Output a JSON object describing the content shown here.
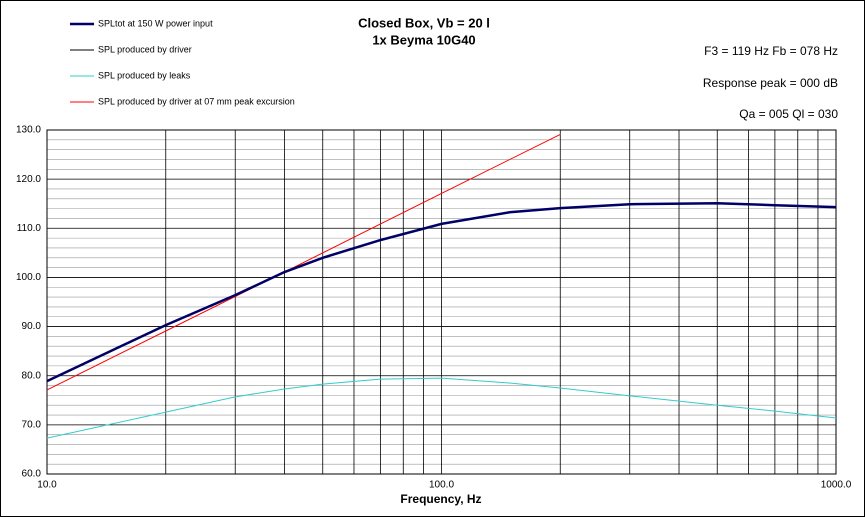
{
  "chart_data": {
    "type": "line",
    "title": "Closed Box, Vb = 20 l",
    "subtitle": "1x Beyma 10G40",
    "annotations": [
      "F3 = 119 Hz  Fb = 078 Hz",
      "Response peak = 000 dB",
      "Qa = 005  Ql = 030"
    ],
    "x_label": "Frequency, Hz",
    "log_x": true,
    "grid": true,
    "legend": "top-left",
    "xlim": [
      10,
      1000
    ],
    "ylim": [
      60,
      130
    ],
    "xticks": [
      {
        "value": 10,
        "label": "10.0"
      },
      {
        "value": 100,
        "label": "100.0"
      },
      {
        "value": 1000,
        "label": "1000.0"
      }
    ],
    "xminor": [
      20,
      30,
      40,
      50,
      60,
      70,
      80,
      90,
      200,
      300,
      400,
      500,
      600,
      700,
      800,
      900
    ],
    "yticks": [
      {
        "value": 60,
        "label": "60.0"
      },
      {
        "value": 70,
        "label": "70.0"
      },
      {
        "value": 80,
        "label": "80.0"
      },
      {
        "value": 90,
        "label": "90.0"
      },
      {
        "value": 100,
        "label": "100.0"
      },
      {
        "value": 110,
        "label": "110.0"
      },
      {
        "value": 120,
        "label": "120.0"
      },
      {
        "value": 130,
        "label": "130.0"
      }
    ],
    "yminor": [
      62,
      64,
      66,
      68,
      72,
      74,
      76,
      78,
      82,
      84,
      86,
      88,
      92,
      94,
      96,
      98,
      102,
      104,
      106,
      108,
      112,
      114,
      116,
      118,
      122,
      124,
      126,
      128
    ],
    "series": [
      {
        "name": "SPLtot at 150 W power input",
        "color": "#000066",
        "x": [
          10,
          20,
          30,
          40,
          50,
          70,
          100,
          150,
          200,
          300,
          500,
          700,
          1000
        ],
        "values": [
          78.9,
          90.3,
          96.4,
          101.1,
          104,
          107.6,
          110.9,
          113.3,
          114.1,
          114.9,
          115.1,
          114.7,
          114.3
        ]
      },
      {
        "name": "SPL produced by driver",
        "color": "#000000",
        "x": [
          10,
          20,
          30,
          40,
          50,
          70,
          100,
          150,
          200,
          300,
          500,
          700,
          1000
        ],
        "values": [
          78.9,
          90.3,
          96.4,
          101.1,
          104,
          107.6,
          110.9,
          113.3,
          114.1,
          114.9,
          115.1,
          114.7,
          114.3
        ]
      },
      {
        "name": "SPL produced by leaks",
        "color": "#33cccc",
        "x": [
          10,
          20,
          30,
          40,
          50,
          70,
          100,
          150,
          200,
          300,
          500,
          700,
          1000
        ],
        "values": [
          67.3,
          72.6,
          75.7,
          77.3,
          78.3,
          79.3,
          79.5,
          78.5,
          77.5,
          75.9,
          74,
          72.8,
          71.4
        ]
      },
      {
        "name": "SPL produced by driver at 07 mm peak excursion",
        "color": "#ff0000",
        "x": [
          10,
          20,
          40,
          100,
          200
        ],
        "values": [
          77.1,
          89.1,
          101.1,
          117.1,
          129.1
        ]
      }
    ]
  }
}
